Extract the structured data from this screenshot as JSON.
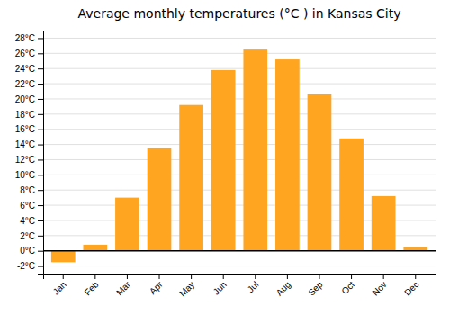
{
  "chart_data": {
    "type": "bar",
    "title": "Average monthly temperatures (°C ) in Kansas City",
    "categories": [
      "Jan",
      "Feb",
      "Mar",
      "Apr",
      "May",
      "Jun",
      "Jul",
      "Aug",
      "Sep",
      "Oct",
      "Nov",
      "Dec"
    ],
    "values": [
      -1.5,
      0.8,
      7.0,
      13.5,
      19.2,
      23.8,
      26.5,
      25.2,
      20.6,
      14.8,
      7.2,
      0.5
    ],
    "color": "#FFA520",
    "ylim": [
      -3,
      29
    ],
    "yticks": [
      {
        "value": -2,
        "label": "-2°C"
      },
      {
        "value": 0,
        "label": "0°C"
      },
      {
        "value": 2,
        "label": "2°C"
      },
      {
        "value": 4,
        "label": "4°C"
      },
      {
        "value": 6,
        "label": "6°C"
      },
      {
        "value": 8,
        "label": "8°C"
      },
      {
        "value": 10,
        "label": "10°C"
      },
      {
        "value": 12,
        "label": "12°C"
      },
      {
        "value": 14,
        "label": "14°C"
      },
      {
        "value": 16,
        "label": "16°C"
      },
      {
        "value": 18,
        "label": "18°C"
      },
      {
        "value": 20,
        "label": "20°C"
      },
      {
        "value": 22,
        "label": "22°C"
      },
      {
        "value": 24,
        "label": "24°C"
      },
      {
        "value": 26,
        "label": "26°C"
      },
      {
        "value": 28,
        "label": "28°C"
      }
    ],
    "grid": true
  }
}
